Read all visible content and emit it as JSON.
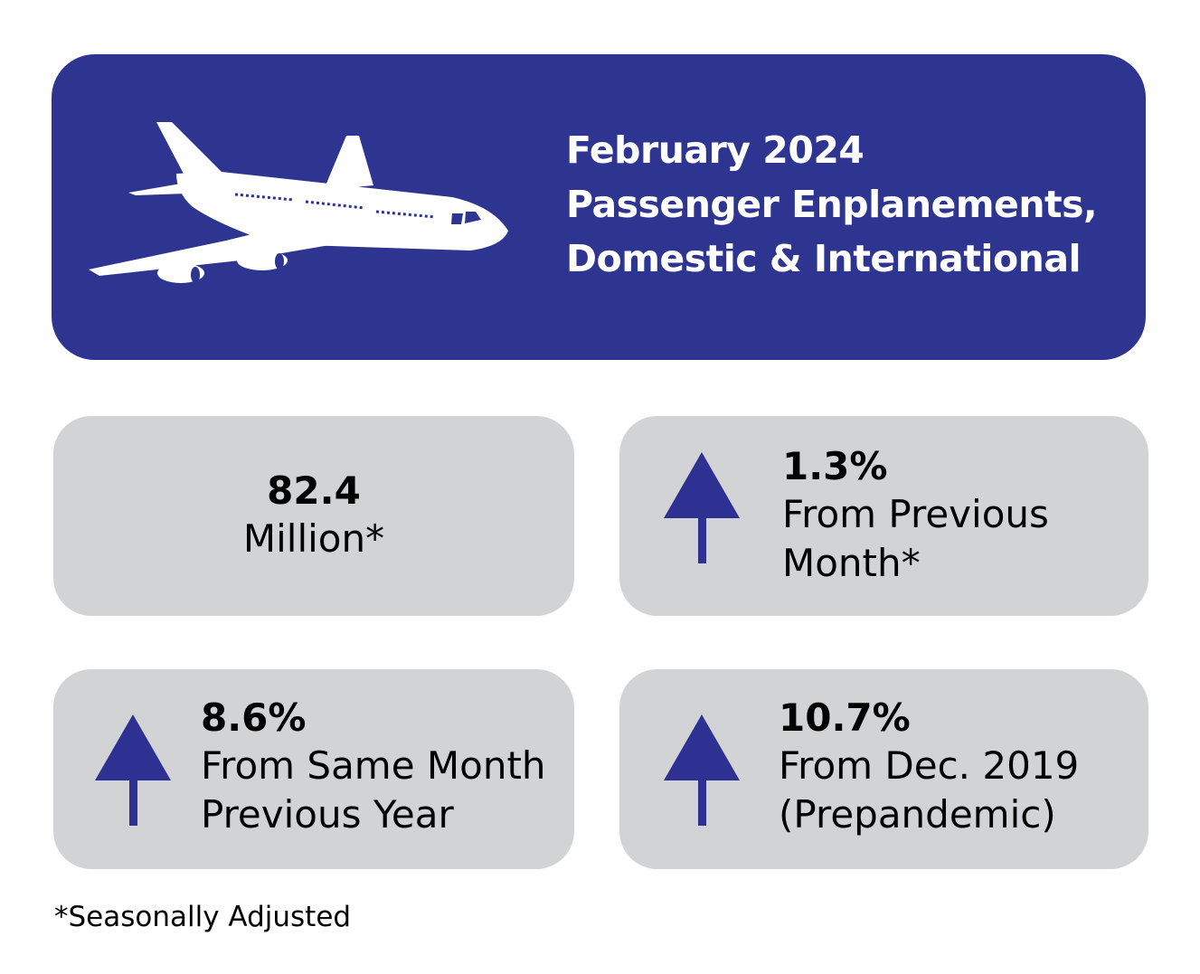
{
  "header": {
    "icon": "airplane-icon",
    "title_lines": [
      "February 2024",
      "Passenger Enplanements,",
      "Domestic & International"
    ]
  },
  "colors": {
    "header_bg": "#2E3590",
    "card_bg": "#D1D3D4",
    "arrow": "#2E3192"
  },
  "cards": [
    {
      "value": "82.4",
      "label_lines": [
        "Million*"
      ]
    },
    {
      "value": "1.3%",
      "direction": "up",
      "icon": "arrow-up-icon",
      "label_lines": [
        "From Previous",
        "Month*"
      ]
    },
    {
      "value": "8.6%",
      "direction": "up",
      "icon": "arrow-up-icon",
      "label_lines": [
        "From Same Month",
        "Previous Year"
      ]
    },
    {
      "value": "10.7%",
      "direction": "up",
      "icon": "arrow-up-icon",
      "label_lines": [
        "From Dec. 2019",
        "(Prepandemic)"
      ]
    }
  ],
  "footnote": "*Seasonally Adjusted"
}
